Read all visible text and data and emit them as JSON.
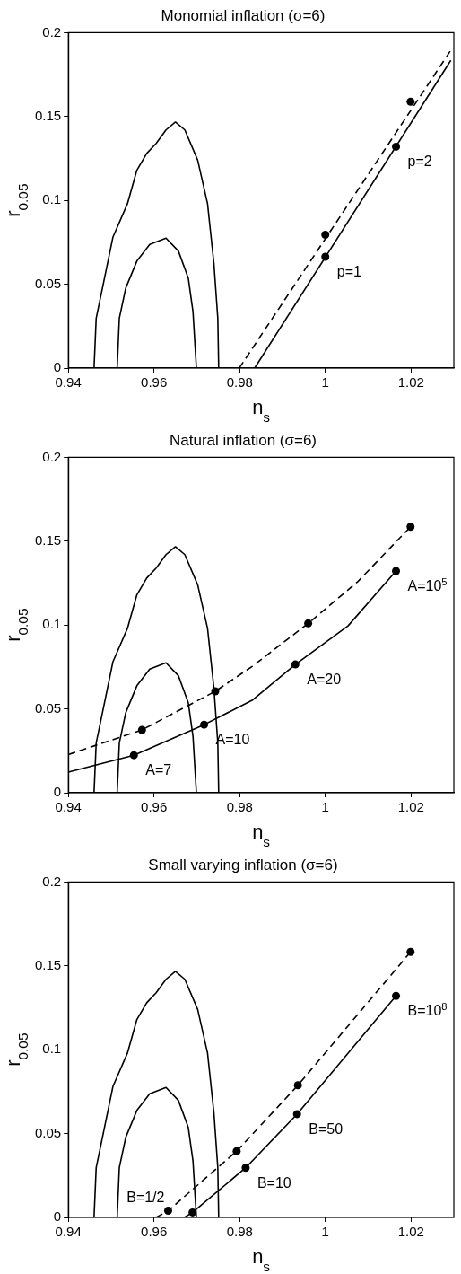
{
  "chart_data": [
    {
      "type": "line",
      "title": "Monomial inflation (σ=6)",
      "xlabel": "n$_{s}$",
      "ylabel": "r$_{0.05}$",
      "xlim": [
        0.94,
        1.03
      ],
      "ylim": [
        0,
        0.2
      ],
      "xticks": [
        0.94,
        0.96,
        0.98,
        1,
        1.02
      ],
      "yticks": [
        0,
        0.05,
        0.1,
        0.15,
        0.2
      ],
      "marker": "none",
      "series": [
        {
          "type": "line",
          "color": "#000000",
          "line_style": "solid",
          "x": [
            0.946,
            0.9465,
            0.9478,
            0.9504,
            0.9538,
            0.956,
            0.9583,
            0.9605,
            0.9628,
            0.965,
            0.9672,
            0.9702,
            0.9725,
            0.974,
            0.9749,
            0.9751
          ],
          "values": [
            0,
            0.0296,
            0.0457,
            0.078,
            0.098,
            0.118,
            0.128,
            0.134,
            0.142,
            0.1467,
            0.142,
            0.124,
            0.098,
            0.062,
            0.0296,
            0
          ]
        },
        {
          "type": "line",
          "color": "#000000",
          "line_style": "solid",
          "x": [
            0.9514,
            0.9519,
            0.9534,
            0.956,
            0.959,
            0.9628,
            0.9657,
            0.968,
            0.9691,
            0.9699
          ],
          "values": [
            0,
            0.0296,
            0.0477,
            0.0638,
            0.0738,
            0.0775,
            0.0698,
            0.0537,
            0.0336,
            0
          ]
        },
        {
          "type": "line",
          "color": "#000000",
          "line_style": "dashed",
          "x": [
            0.9799,
            1.0293
          ],
          "values": [
            0,
            0.1895
          ]
        },
        {
          "type": "line",
          "color": "#000000",
          "line_style": "solid",
          "x": [
            0.9835,
            1.0293
          ],
          "values": [
            0,
            0.1835
          ]
        },
        {
          "type": "scatter",
          "color": "#000000",
          "marker": "circle",
          "x": [
            1.0,
            1.0199,
            1.0,
            1.0165
          ],
          "values": [
            0.0795,
            0.1588,
            0.0664,
            0.132
          ]
        }
      ],
      "annotations": [
        {
          "text": "p=1",
          "x": 1.0,
          "y": 0.0664
        },
        {
          "text": "p=2",
          "x": 1.0165,
          "y": 0.132
        }
      ]
    },
    {
      "type": "line",
      "title": "Natural inflation (σ=6)",
      "xlabel": "n$_{s}$",
      "ylabel": "r$_{0.05}$",
      "xlim": [
        0.94,
        1.03
      ],
      "ylim": [
        0,
        0.2
      ],
      "xticks": [
        0.94,
        0.96,
        0.98,
        1,
        1.02
      ],
      "yticks": [
        0,
        0.05,
        0.1,
        0.15,
        0.2
      ],
      "marker": "none",
      "series": [
        {
          "type": "line",
          "color": "#000000",
          "line_style": "solid",
          "x": [
            0.946,
            0.9465,
            0.9478,
            0.9504,
            0.9538,
            0.956,
            0.9583,
            0.9605,
            0.9628,
            0.965,
            0.9672,
            0.9702,
            0.9725,
            0.974,
            0.9749,
            0.9751
          ],
          "values": [
            0,
            0.0296,
            0.0457,
            0.078,
            0.098,
            0.118,
            0.128,
            0.134,
            0.142,
            0.1467,
            0.142,
            0.124,
            0.098,
            0.062,
            0.0296,
            0
          ]
        },
        {
          "type": "line",
          "color": "#000000",
          "line_style": "solid",
          "x": [
            0.9514,
            0.9519,
            0.9534,
            0.956,
            0.959,
            0.9628,
            0.9657,
            0.968,
            0.9691,
            0.9699
          ],
          "values": [
            0,
            0.0296,
            0.0477,
            0.0638,
            0.0738,
            0.0775,
            0.0698,
            0.0537,
            0.0336,
            0
          ]
        },
        {
          "type": "line",
          "color": "#000000",
          "line_style": "dashed",
          "x": [
            0.94,
            0.9572,
            0.9743,
            0.9829,
            0.996,
            1.0075,
            1.0199
          ],
          "values": [
            0.0228,
            0.0375,
            0.0605,
            0.0753,
            0.101,
            0.1257,
            0.1586
          ]
        },
        {
          "type": "line",
          "color": "#000000",
          "line_style": "solid",
          "x": [
            0.94,
            0.9553,
            0.9717,
            0.9829,
            0.993,
            1.0053,
            1.0165
          ],
          "values": [
            0.0123,
            0.0224,
            0.0406,
            0.0551,
            0.0765,
            0.0995,
            0.1322
          ]
        },
        {
          "type": "scatter",
          "color": "#000000",
          "marker": "circle",
          "x": [
            0.9572,
            0.9743,
            0.996,
            1.0199,
            0.9553,
            0.9717,
            0.993,
            1.0165
          ],
          "values": [
            0.0375,
            0.0605,
            0.101,
            0.1586,
            0.0224,
            0.0406,
            0.0765,
            0.1322
          ]
        }
      ],
      "annotations": [
        {
          "text": "A=7",
          "x": 0.9553,
          "y": 0.0224
        },
        {
          "text": "A=10",
          "x": 0.9717,
          "y": 0.0406
        },
        {
          "text": "A=20",
          "x": 0.993,
          "y": 0.0765
        },
        {
          "text": "A=10$^{5}$",
          "x": 1.0165,
          "y": 0.1322
        }
      ]
    },
    {
      "type": "line",
      "title": "Small varying inflation (σ=6)",
      "xlabel": "n$_{s}$",
      "ylabel": "r$_{0.05}$",
      "xlim": [
        0.94,
        1.03
      ],
      "ylim": [
        0,
        0.2
      ],
      "xticks": [
        0.94,
        0.96,
        0.98,
        1,
        1.02
      ],
      "yticks": [
        0,
        0.05,
        0.1,
        0.15,
        0.2
      ],
      "marker": "none",
      "series": [
        {
          "type": "line",
          "color": "#000000",
          "line_style": "solid",
          "x": [
            0.946,
            0.9465,
            0.9478,
            0.9504,
            0.9538,
            0.956,
            0.9583,
            0.9605,
            0.9628,
            0.965,
            0.9672,
            0.9702,
            0.9725,
            0.974,
            0.9749,
            0.9751
          ],
          "values": [
            0,
            0.0296,
            0.0457,
            0.078,
            0.098,
            0.118,
            0.128,
            0.134,
            0.142,
            0.1467,
            0.142,
            0.124,
            0.098,
            0.062,
            0.0296,
            0
          ]
        },
        {
          "type": "line",
          "color": "#000000",
          "line_style": "solid",
          "x": [
            0.9514,
            0.9519,
            0.9534,
            0.956,
            0.959,
            0.9628,
            0.9657,
            0.968,
            0.9691,
            0.9699
          ],
          "values": [
            0,
            0.0296,
            0.0477,
            0.0638,
            0.0738,
            0.0775,
            0.0698,
            0.0537,
            0.0336,
            0
          ]
        },
        {
          "type": "line",
          "color": "#000000",
          "line_style": "dashed",
          "x": [
            0.9605,
            0.9633,
            0.9793,
            0.9936,
            1.0199
          ],
          "values": [
            0,
            0.004,
            0.0395,
            0.0788,
            0.1583
          ]
        },
        {
          "type": "line",
          "color": "#000000",
          "line_style": "solid",
          "x": [
            0.9671,
            0.969,
            0.9814,
            0.9934,
            1.0165
          ],
          "values": [
            0,
            0.003,
            0.0296,
            0.0616,
            0.1321
          ]
        },
        {
          "type": "scatter",
          "color": "#000000",
          "marker": "circle",
          "x": [
            0.9633,
            0.9793,
            0.9936,
            1.0199,
            0.969,
            0.9814,
            0.9934,
            1.0165
          ],
          "values": [
            0.004,
            0.0395,
            0.0788,
            0.1583,
            0.003,
            0.0296,
            0.0616,
            0.1321
          ]
        }
      ],
      "annotations": [
        {
          "text": "B=1/2",
          "x": 0.9633,
          "y": 0.004
        },
        {
          "text": "B=10",
          "x": 0.9814,
          "y": 0.0296
        },
        {
          "text": "B=50",
          "x": 0.9934,
          "y": 0.0616
        },
        {
          "text": "B=10$^{8}$",
          "x": 1.0165,
          "y": 0.1321
        }
      ]
    }
  ]
}
